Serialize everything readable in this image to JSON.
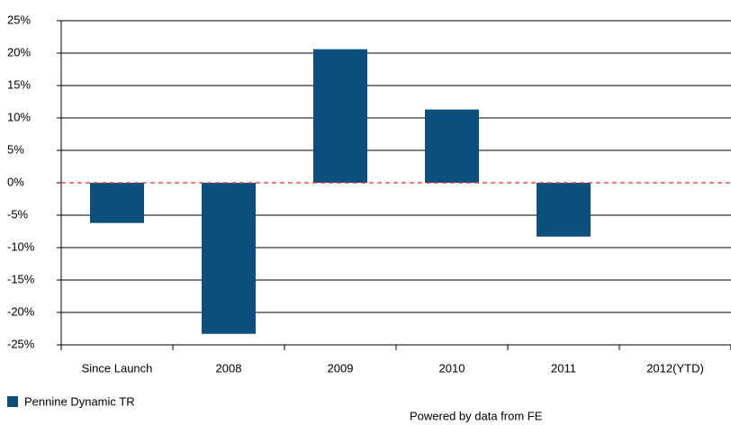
{
  "chart_data": {
    "type": "bar",
    "categories": [
      "Since Launch",
      "2008",
      "2009",
      "2010",
      "2011",
      "2012(YTD)"
    ],
    "series": [
      {
        "name": "Pennine Dynamic TR",
        "color": "#0b4f7c",
        "values": [
          -6.2,
          -23.3,
          20.6,
          11.3,
          -8.3,
          null
        ]
      }
    ],
    "ylim": [
      -25,
      25
    ],
    "yticks": [
      {
        "value": -25,
        "label": "-25%"
      },
      {
        "value": -20,
        "label": "-20%"
      },
      {
        "value": -15,
        "label": "-15%"
      },
      {
        "value": -10,
        "label": "-10%"
      },
      {
        "value": -5,
        "label": "-5%"
      },
      {
        "value": 0,
        "label": "0%"
      },
      {
        "value": 5,
        "label": "5%"
      },
      {
        "value": 10,
        "label": "10%"
      },
      {
        "value": 15,
        "label": "15%"
      },
      {
        "value": 20,
        "label": "20%"
      },
      {
        "value": 25,
        "label": "25%"
      }
    ],
    "grid": true,
    "legend": "bottom-left",
    "footer": "Powered by data from FE"
  }
}
